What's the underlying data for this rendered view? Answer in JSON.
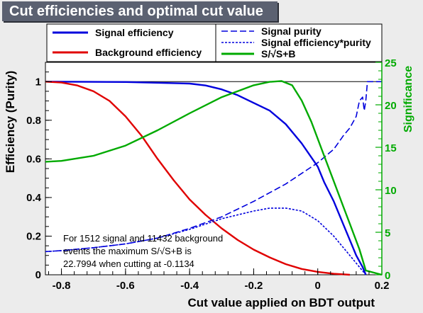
{
  "title": "Cut efficiencies and optimal cut value",
  "colors": {
    "background": "#ececec",
    "title_box": "#5b6171",
    "signal": "#0000dd",
    "background_eff": "#e00000",
    "purity": "#0000dd",
    "significance": "#00aa00",
    "axis": "#000000"
  },
  "chart_data": {
    "type": "line",
    "title": "Cut efficiencies and optimal cut value",
    "xlabel": "Cut value applied on BDT output",
    "ylabel": "Efficiency (Purity)",
    "y2label": "Significance",
    "xlim": [
      -0.85,
      0.2
    ],
    "ylim": [
      0,
      1.1
    ],
    "y2lim": [
      0,
      25
    ],
    "x_ticks": [
      "-0.8",
      "-0.6",
      "-0.4",
      "-0.2",
      "0",
      "0.2"
    ],
    "y_ticks": [
      "0",
      "0.2",
      "0.4",
      "0.6",
      "0.8",
      "1"
    ],
    "y2_ticks": [
      "0",
      "5",
      "10",
      "15",
      "20",
      "25"
    ],
    "grid": false,
    "legend_left": [
      {
        "label": "Signal efficiency",
        "style": "solid",
        "color": "#0000dd"
      },
      {
        "label": "Background efficiency",
        "style": "solid",
        "color": "#e00000"
      }
    ],
    "legend_right": [
      {
        "label": "Signal purity",
        "style": "longdash",
        "color": "#0000dd"
      },
      {
        "label": "Signal efficiency*purity",
        "style": "shortdash",
        "color": "#0000dd"
      },
      {
        "label": "S/√S+B",
        "style": "solid",
        "color": "#00aa00"
      }
    ],
    "annotation": [
      "For 1512 signal and 11432 background",
      "events the maximum S/√S+B is",
      "22.7994 when cutting at -0.1134"
    ],
    "series": [
      {
        "name": "Signal efficiency",
        "axis": "left",
        "style": "solid",
        "color": "#0000dd",
        "x": [
          -0.85,
          -0.6,
          -0.4,
          -0.35,
          -0.3,
          -0.25,
          -0.2,
          -0.15,
          -0.1,
          -0.05,
          0.0,
          0.02,
          0.05,
          0.08,
          0.1,
          0.12,
          0.14,
          0.15
        ],
        "y": [
          1.0,
          0.998,
          0.99,
          0.98,
          0.96,
          0.93,
          0.89,
          0.85,
          0.78,
          0.68,
          0.56,
          0.48,
          0.38,
          0.26,
          0.18,
          0.1,
          0.04,
          0.0
        ]
      },
      {
        "name": "Background efficiency",
        "axis": "left",
        "style": "solid",
        "color": "#e00000",
        "x": [
          -0.85,
          -0.8,
          -0.75,
          -0.7,
          -0.65,
          -0.6,
          -0.55,
          -0.5,
          -0.45,
          -0.4,
          -0.35,
          -0.3,
          -0.25,
          -0.2,
          -0.15,
          -0.1,
          -0.05,
          0.0,
          0.05,
          0.1
        ],
        "y": [
          1.0,
          0.995,
          0.98,
          0.95,
          0.9,
          0.82,
          0.72,
          0.6,
          0.49,
          0.39,
          0.31,
          0.24,
          0.18,
          0.13,
          0.09,
          0.055,
          0.03,
          0.015,
          0.005,
          0.0
        ]
      },
      {
        "name": "Signal purity",
        "axis": "left",
        "style": "longdash",
        "color": "#0000dd",
        "x": [
          -0.85,
          -0.8,
          -0.7,
          -0.6,
          -0.5,
          -0.4,
          -0.3,
          -0.2,
          -0.1,
          0.0,
          0.05,
          0.08,
          0.1,
          0.12,
          0.13,
          0.14,
          0.145,
          0.15,
          0.155,
          0.2
        ],
        "y": [
          0.12,
          0.125,
          0.14,
          0.16,
          0.19,
          0.24,
          0.3,
          0.38,
          0.47,
          0.58,
          0.65,
          0.72,
          0.76,
          0.82,
          0.9,
          0.92,
          0.85,
          0.9,
          1.0,
          1.0
        ]
      },
      {
        "name": "Signal efficiency*purity",
        "axis": "left",
        "style": "shortdash",
        "color": "#0000dd",
        "x": [
          -0.85,
          -0.8,
          -0.7,
          -0.6,
          -0.5,
          -0.4,
          -0.3,
          -0.2,
          -0.15,
          -0.1,
          -0.05,
          0.0,
          0.05,
          0.1,
          0.15
        ],
        "y": [
          0.12,
          0.125,
          0.14,
          0.16,
          0.19,
          0.235,
          0.29,
          0.33,
          0.345,
          0.345,
          0.33,
          0.28,
          0.2,
          0.1,
          0.0
        ]
      },
      {
        "name": "S/√S+B",
        "axis": "right",
        "style": "solid",
        "color": "#00aa00",
        "x": [
          -0.85,
          -0.8,
          -0.7,
          -0.6,
          -0.5,
          -0.4,
          -0.3,
          -0.2,
          -0.15,
          -0.1134,
          -0.08,
          -0.05,
          -0.02,
          0.0,
          0.02,
          0.05,
          0.08,
          0.1,
          0.13,
          0.15,
          0.2
        ],
        "y": [
          13.3,
          13.4,
          14.0,
          15.2,
          17.0,
          19.0,
          20.9,
          22.3,
          22.7,
          22.8,
          22.3,
          20.5,
          18.0,
          16.0,
          14.0,
          11.0,
          8.0,
          6.0,
          3.0,
          0.5,
          0.0
        ]
      }
    ]
  }
}
